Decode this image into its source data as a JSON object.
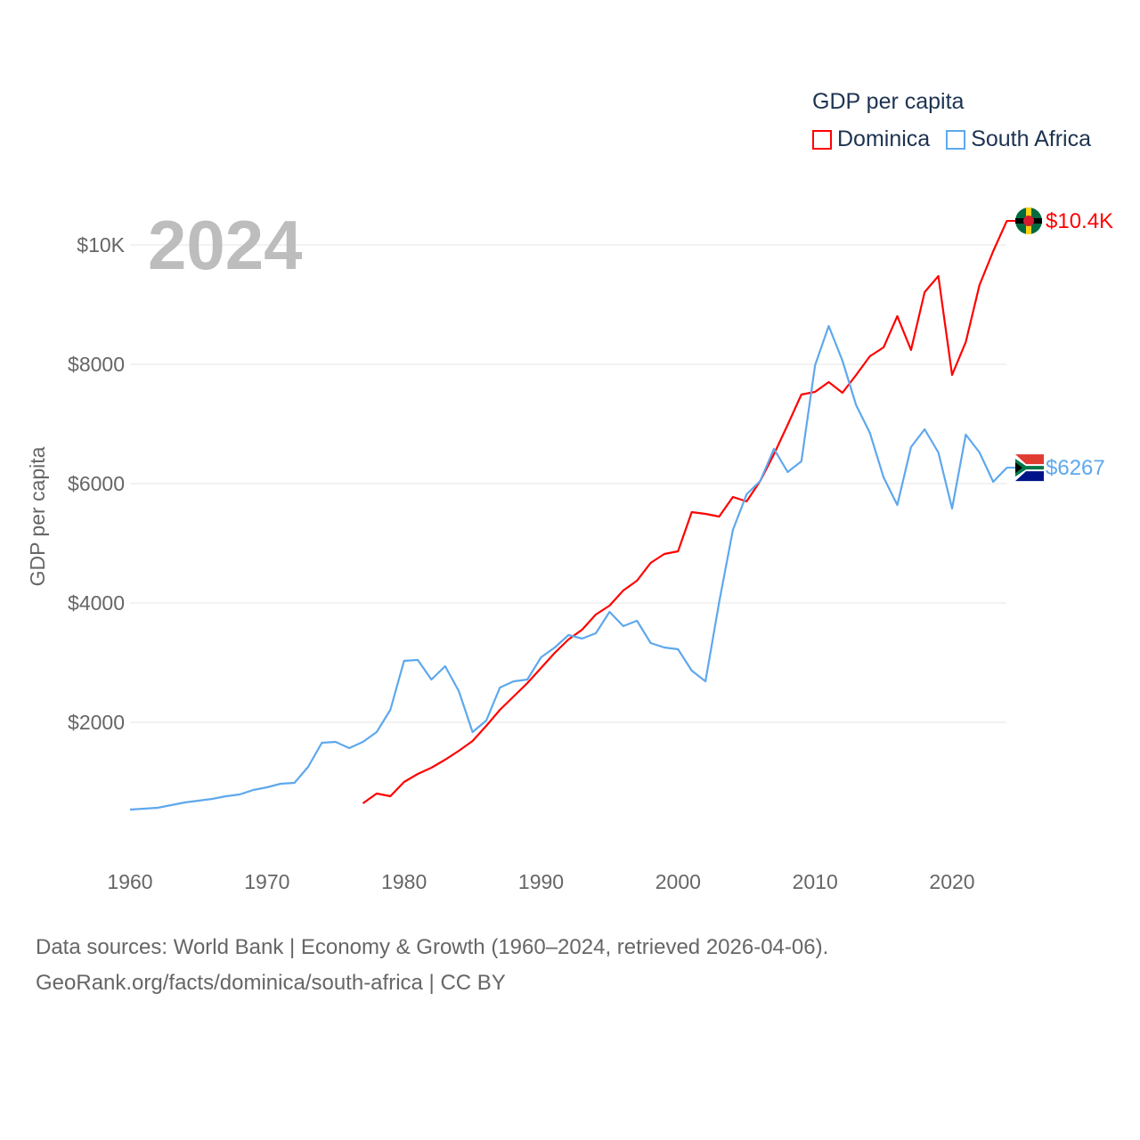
{
  "chart_data": {
    "type": "line",
    "title": "GDP per capita",
    "ylabel": "GDP per capita",
    "xlabel": "",
    "current_year_label": "2024",
    "xlim": [
      1960,
      2024
    ],
    "ylim": [
      0,
      10800
    ],
    "x_ticks": [
      1960,
      1970,
      1980,
      1990,
      2000,
      2010,
      2020
    ],
    "x_tick_labels": [
      "1960",
      "1970",
      "1980",
      "1990",
      "2000",
      "2010",
      "2020"
    ],
    "y_ticks": [
      2000,
      4000,
      6000,
      8000,
      10000
    ],
    "y_tick_labels": [
      "$2000",
      "$4000",
      "$6000",
      "$8000",
      "$10K"
    ],
    "grid": true,
    "legend_position": "top-right",
    "series": [
      {
        "name": "Dominica",
        "color": "#ff0000",
        "end_label": "$10.4K",
        "flag_icon": "dominica-flag-icon",
        "start_year": 1977,
        "values": [
          642,
          806,
          761,
          1000,
          1134,
          1239,
          1373,
          1522,
          1687,
          1940,
          2209,
          2433,
          2657,
          2910,
          3164,
          3388,
          3552,
          3806,
          3955,
          4209,
          4373,
          4672,
          4821,
          4866,
          5522,
          5493,
          5448,
          5776,
          5701,
          6045,
          6493,
          6985,
          7493,
          7537,
          7701,
          7522,
          7821,
          8134,
          8284,
          8806,
          8239,
          9209,
          9478,
          7821,
          8373,
          9328,
          9896,
          10403
        ]
      },
      {
        "name": "South Africa",
        "color": "#5ea8ed",
        "end_label": "$6267",
        "flag_icon": "south-africa-flag-icon",
        "start_year": 1960,
        "values": [
          537,
          552,
          567,
          612,
          657,
          687,
          716,
          761,
          791,
          866,
          910,
          970,
          985,
          1254,
          1657,
          1672,
          1567,
          1672,
          1836,
          2209,
          3030,
          3045,
          2716,
          2940,
          2522,
          1836,
          2030,
          2582,
          2687,
          2716,
          3090,
          3254,
          3463,
          3403,
          3493,
          3851,
          3612,
          3701,
          3328,
          3254,
          3224,
          2866,
          2687,
          4015,
          5224,
          5821,
          6045,
          6582,
          6194,
          6373,
          7985,
          8642,
          8060,
          7313,
          6851,
          6104,
          5642,
          6612,
          6910,
          6522,
          5582,
          6821,
          6522,
          6030,
          6267
        ]
      }
    ]
  },
  "footer": {
    "line1": "Data sources: World Bank | Economy & Growth (1960–2024, retrieved 2026-04-06).",
    "line2": "GeoRank.org/facts/dominica/south-africa | CC BY"
  }
}
